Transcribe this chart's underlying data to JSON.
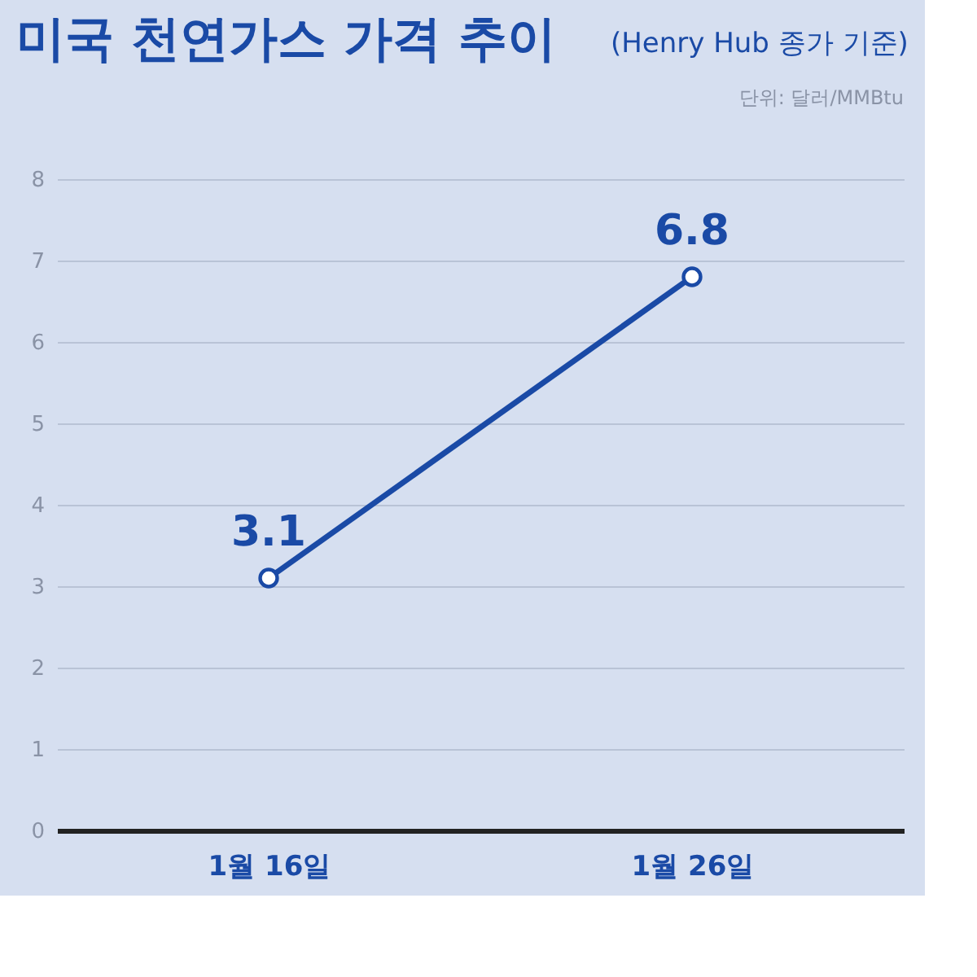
{
  "chart_data": {
    "type": "line",
    "title": "미국 천연가스 가격 추이",
    "subtitle": "(Henry Hub 종가 기준)",
    "annotations": [
      "단위: 달러/MMBtu"
    ],
    "categories": [
      "1월 16일",
      "1월 26일"
    ],
    "series": [
      {
        "color": "#1a4aa6",
        "values": [
          3.1,
          6.8
        ]
      }
    ],
    "ylim": [
      0,
      8
    ],
    "yticks": [
      0,
      1,
      2,
      3,
      4,
      5,
      6,
      7,
      8
    ],
    "grid": "y",
    "marker": "circle",
    "line_style": "solid",
    "data_labels": true
  }
}
